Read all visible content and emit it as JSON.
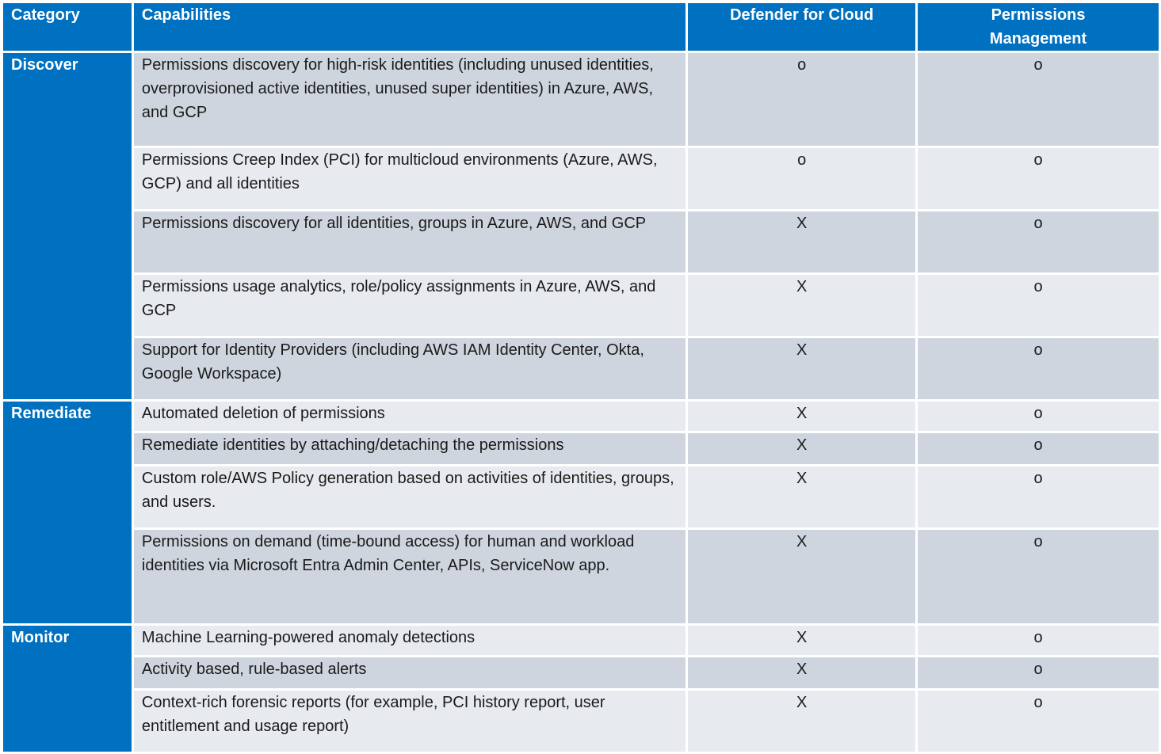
{
  "headers": {
    "category": "Category",
    "capabilities": "Capabilities",
    "defender": "Defender for Cloud",
    "permissions": "Permissions Management"
  },
  "categories": {
    "discover": "Discover",
    "remediate": "Remediate",
    "monitor": "Monitor"
  },
  "rows": [
    {
      "capability": "Permissions discovery for high-risk identities (including unused identities, overprovisioned active identities, unused super identities) in Azure, AWS, and GCP",
      "defender": "o",
      "permissions": "o"
    },
    {
      "capability": "Permissions Creep Index (PCI) for multicloud environments (Azure, AWS, GCP) and all identities",
      "defender": "o",
      "permissions": "o"
    },
    {
      "capability": "Permissions discovery for all identities, groups in Azure, AWS, and GCP",
      "defender": "X",
      "permissions": "o"
    },
    {
      "capability": "Permissions usage analytics, role/policy assignments in Azure, AWS, and GCP",
      "defender": "X",
      "permissions": "o"
    },
    {
      "capability": "Support for Identity Providers (including AWS IAM Identity Center, Okta, Google Workspace)",
      "defender": "X",
      "permissions": "o"
    },
    {
      "capability": "Automated deletion of permissions",
      "defender": "X",
      "permissions": "o"
    },
    {
      "capability": "Remediate identities by attaching/detaching the permissions",
      "defender": "X",
      "permissions": "o"
    },
    {
      "capability": "Custom role/AWS Policy generation based on activities of identities, groups, and users.",
      "defender": "X",
      "permissions": "o"
    },
    {
      "capability": "Permissions on demand (time-bound access) for human and workload identities via Microsoft Entra Admin Center, APIs, ServiceNow app.",
      "defender": "X",
      "permissions": "o"
    },
    {
      "capability": "Machine Learning-powered anomaly detections",
      "defender": "X",
      "permissions": "o"
    },
    {
      "capability": "Activity based, rule-based alerts",
      "defender": "X",
      "permissions": "o"
    },
    {
      "capability": "Context-rich forensic reports (for example, PCI history report, user entitlement and usage report)",
      "defender": "X",
      "permissions": "o"
    }
  ],
  "colors": {
    "header_blue": "#0070C0",
    "row_dark": "#CFD5DE",
    "row_light": "#E7EAEE"
  }
}
